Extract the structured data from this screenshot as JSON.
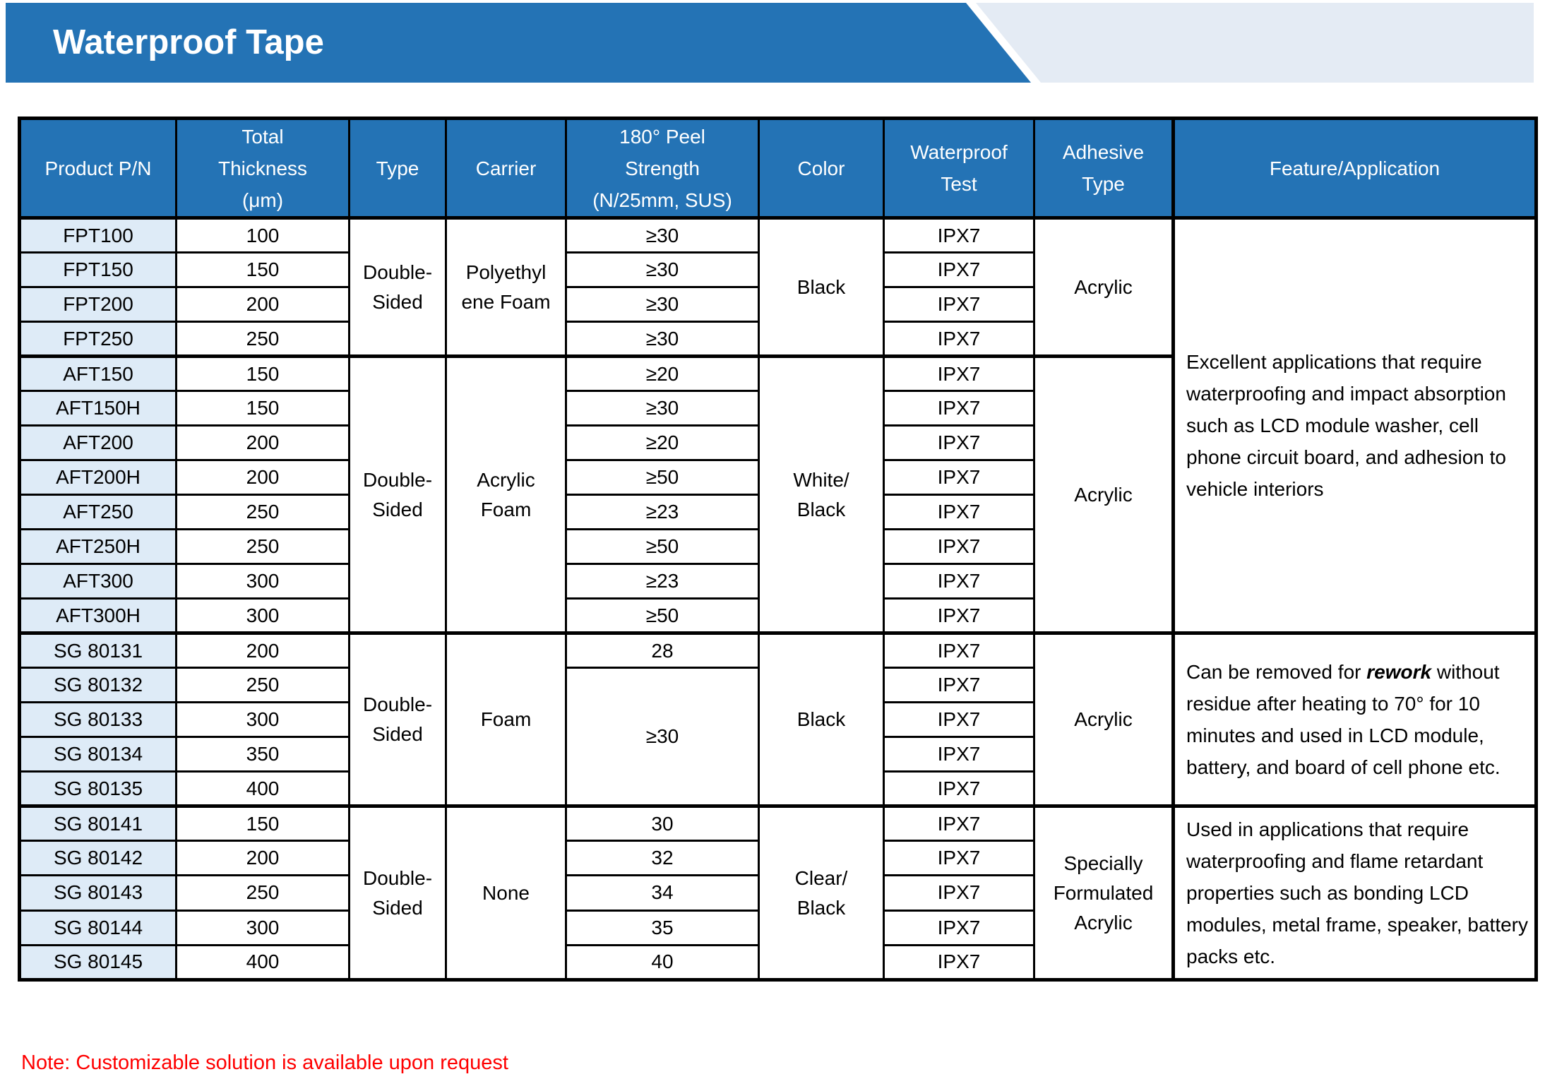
{
  "banner": {
    "title": "Waterproof Tape",
    "blue": "#2473B5",
    "light": "#E4EBF4"
  },
  "table": {
    "headers": {
      "product_pn": "Product P/N",
      "total_thickness": "Total\nThickness\n(μm)",
      "type": "Type",
      "carrier": "Carrier",
      "peel_strength": "180° Peel\nStrength\n(N/25mm, SUS)",
      "color": "Color",
      "waterproof_test": "Waterproof\nTest",
      "adhesive_type": "Adhesive\nType",
      "feature": "Feature/Application"
    },
    "groups": [
      {
        "type": "Double-\nSided",
        "carrier": "Polyethyl\nene Foam",
        "color": "Black",
        "adhesive": "Acrylic",
        "rows": [
          {
            "pn": "FPT100",
            "thickness": "100",
            "peel": "≥30",
            "test": "IPX7"
          },
          {
            "pn": "FPT150",
            "thickness": "150",
            "peel": "≥30",
            "test": "IPX7"
          },
          {
            "pn": "FPT200",
            "thickness": "200",
            "peel": "≥30",
            "test": "IPX7"
          },
          {
            "pn": "FPT250",
            "thickness": "250",
            "peel": "≥30",
            "test": "IPX7"
          }
        ]
      },
      {
        "type": "Double-\nSided",
        "carrier": "Acrylic\nFoam",
        "color": "White/\nBlack",
        "adhesive": "Acrylic",
        "rows": [
          {
            "pn": "AFT150",
            "thickness": "150",
            "peel": "≥20",
            "test": "IPX7"
          },
          {
            "pn": "AFT150H",
            "thickness": "150",
            "peel": "≥30",
            "test": "IPX7"
          },
          {
            "pn": "AFT200",
            "thickness": "200",
            "peel": "≥20",
            "test": "IPX7"
          },
          {
            "pn": "AFT200H",
            "thickness": "200",
            "peel": "≥50",
            "test": "IPX7"
          },
          {
            "pn": "AFT250",
            "thickness": "250",
            "peel": "≥23",
            "test": "IPX7"
          },
          {
            "pn": "AFT250H",
            "thickness": "250",
            "peel": "≥50",
            "test": "IPX7"
          },
          {
            "pn": "AFT300",
            "thickness": "300",
            "peel": "≥23",
            "test": "IPX7"
          },
          {
            "pn": "AFT300H",
            "thickness": "300",
            "peel": "≥50",
            "test": "IPX7"
          }
        ]
      },
      {
        "type": "Double-\nSided",
        "carrier": "Foam",
        "color": "Black",
        "adhesive": "Acrylic",
        "peel_merged": "≥30",
        "rows": [
          {
            "pn": "SG 80131",
            "thickness": "200",
            "peel": "28",
            "test": "IPX7"
          },
          {
            "pn": "SG 80132",
            "thickness": "250",
            "test": "IPX7"
          },
          {
            "pn": "SG 80133",
            "thickness": "300",
            "test": "IPX7"
          },
          {
            "pn": "SG 80134",
            "thickness": "350",
            "test": "IPX7"
          },
          {
            "pn": "SG 80135",
            "thickness": "400",
            "test": "IPX7"
          }
        ]
      },
      {
        "type": "Double-\nSided",
        "carrier": "None",
        "color": "Clear/\nBlack",
        "adhesive": "Specially\nFormulated\nAcrylic",
        "rows": [
          {
            "pn": "SG 80141",
            "thickness": "150",
            "peel": "30",
            "test": "IPX7"
          },
          {
            "pn": "SG 80142",
            "thickness": "200",
            "peel": "32",
            "test": "IPX7"
          },
          {
            "pn": "SG 80143",
            "thickness": "250",
            "peel": "34",
            "test": "IPX7"
          },
          {
            "pn": "SG 80144",
            "thickness": "300",
            "peel": "35",
            "test": "IPX7"
          },
          {
            "pn": "SG 80145",
            "thickness": "400",
            "peel": "40",
            "test": "IPX7"
          }
        ]
      }
    ],
    "features": [
      {
        "text": "Excellent applications that require waterproofing and impact absorption such as LCD module washer, cell phone circuit board, and adhesion to vehicle interiors"
      },
      {
        "prefix": "Can be removed for ",
        "highlight": "rework",
        "suffix": " without residue after heating to 70° for 10 minutes and used in LCD module, battery, and board of cell phone etc."
      },
      {
        "text": "Used in applications that require waterproofing and flame retardant properties such as bonding LCD modules, metal frame, speaker, battery packs etc."
      }
    ]
  },
  "note": "Note: Customizable solution is available upon request",
  "colors": {
    "header_fill": "#2473B5",
    "first_column_fill": "#DEEBF7",
    "note_red": "#FF0000",
    "border_black": "#000000"
  }
}
